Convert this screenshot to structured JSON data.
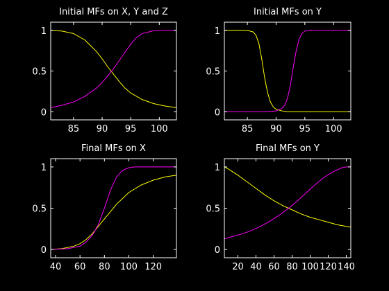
{
  "colors": {
    "background": "#000000",
    "axes": "#ffffff",
    "series1": "#ffff00",
    "series2": "#ff00ff"
  },
  "chart_data": [
    {
      "type": "line",
      "title": "Initial MFs on X, Y and Z",
      "xlim": [
        81,
        103
      ],
      "ylim": [
        -0.1,
        1.1
      ],
      "xticks": [
        85,
        90,
        95,
        100
      ],
      "xticklabels": [
        "85",
        "90",
        "95",
        "100"
      ],
      "yticks": [
        0,
        0.5,
        1
      ],
      "yticklabels": [
        "0",
        "0.5",
        "1"
      ],
      "grid": false,
      "series": [
        {
          "color": "#ffff00",
          "x": [
            81,
            83,
            85,
            87,
            89,
            90,
            91,
            92,
            93,
            94,
            95,
            97,
            99,
            101,
            103
          ],
          "y": [
            1.0,
            0.99,
            0.96,
            0.88,
            0.74,
            0.65,
            0.55,
            0.46,
            0.37,
            0.29,
            0.23,
            0.15,
            0.1,
            0.07,
            0.05
          ]
        },
        {
          "color": "#ff00ff",
          "x": [
            81,
            83,
            85,
            87,
            89,
            90,
            91,
            92,
            93,
            94,
            95,
            96,
            97,
            99,
            101,
            103
          ],
          "y": [
            0.05,
            0.08,
            0.12,
            0.19,
            0.29,
            0.36,
            0.44,
            0.53,
            0.63,
            0.73,
            0.83,
            0.91,
            0.96,
            0.995,
            1.0,
            1.0
          ]
        }
      ]
    },
    {
      "type": "line",
      "title": "Initial MFs on Y",
      "xlim": [
        81,
        103
      ],
      "ylim": [
        -0.1,
        1.1
      ],
      "xticks": [
        85,
        90,
        95,
        100
      ],
      "xticklabels": [
        "85",
        "90",
        "95",
        "100"
      ],
      "yticks": [
        0,
        0.5,
        1
      ],
      "yticklabels": [
        "0",
        "0.5",
        "1"
      ],
      "grid": false,
      "series": [
        {
          "color": "#ffff00",
          "x": [
            81,
            85,
            86,
            86.5,
            87,
            87.5,
            88,
            88.5,
            89,
            89.5,
            90,
            91,
            92,
            95,
            103
          ],
          "y": [
            1.0,
            1.0,
            0.98,
            0.94,
            0.84,
            0.65,
            0.42,
            0.24,
            0.12,
            0.06,
            0.03,
            0.01,
            0.0,
            0.0,
            0.0
          ]
        },
        {
          "color": "#ff00ff",
          "x": [
            81,
            88,
            90,
            91,
            91.5,
            92,
            92.5,
            93,
            93.5,
            94,
            94.5,
            95,
            96,
            103
          ],
          "y": [
            0.0,
            0.0,
            0.01,
            0.04,
            0.08,
            0.17,
            0.33,
            0.55,
            0.75,
            0.89,
            0.96,
            0.99,
            1.0,
            1.0
          ]
        }
      ]
    },
    {
      "type": "line",
      "title": "Final MFs on X",
      "xlim": [
        36,
        139
      ],
      "ylim": [
        -0.1,
        1.1
      ],
      "xticks": [
        40,
        60,
        80,
        100,
        120
      ],
      "xticklabels": [
        "40",
        "60",
        "80",
        "100",
        "120"
      ],
      "yticks": [
        0,
        0.5,
        1
      ],
      "yticklabels": [
        "0",
        "0.5",
        "1"
      ],
      "grid": false,
      "series": [
        {
          "color": "#ffff00",
          "x": [
            36,
            45,
            55,
            60,
            65,
            70,
            75,
            80,
            85,
            90,
            95,
            100,
            110,
            120,
            130,
            139
          ],
          "y": [
            0.0,
            0.01,
            0.04,
            0.07,
            0.12,
            0.19,
            0.28,
            0.37,
            0.46,
            0.55,
            0.62,
            0.69,
            0.78,
            0.84,
            0.88,
            0.9
          ]
        },
        {
          "color": "#ff00ff",
          "x": [
            36,
            50,
            60,
            65,
            70,
            75,
            80,
            85,
            90,
            95,
            100,
            105,
            139
          ],
          "y": [
            0.0,
            0.01,
            0.04,
            0.09,
            0.17,
            0.3,
            0.5,
            0.72,
            0.88,
            0.96,
            0.99,
            1.0,
            1.0
          ]
        }
      ]
    },
    {
      "type": "line",
      "title": "Final MFs on Y",
      "xlim": [
        5,
        145
      ],
      "ylim": [
        -0.1,
        1.1
      ],
      "xticks": [
        20,
        40,
        60,
        80,
        100,
        120,
        140
      ],
      "xticklabels": [
        "20",
        "40",
        "60",
        "80",
        "100",
        "120",
        "140"
      ],
      "yticks": [
        0,
        0.5,
        1
      ],
      "yticklabels": [
        "0",
        "0.5",
        "1"
      ],
      "grid": false,
      "series": [
        {
          "color": "#ffff00",
          "x": [
            5,
            10,
            20,
            30,
            40,
            50,
            60,
            70,
            80,
            90,
            100,
            110,
            120,
            130,
            145
          ],
          "y": [
            1.0,
            0.97,
            0.9,
            0.82,
            0.74,
            0.66,
            0.59,
            0.53,
            0.48,
            0.43,
            0.39,
            0.36,
            0.33,
            0.3,
            0.27
          ]
        },
        {
          "color": "#ff00ff",
          "x": [
            5,
            15,
            25,
            35,
            45,
            55,
            65,
            75,
            85,
            95,
            105,
            115,
            125,
            135,
            140,
            145
          ],
          "y": [
            0.13,
            0.16,
            0.19,
            0.23,
            0.28,
            0.34,
            0.41,
            0.49,
            0.58,
            0.68,
            0.78,
            0.87,
            0.94,
            0.99,
            1.0,
            1.0
          ]
        }
      ]
    }
  ]
}
